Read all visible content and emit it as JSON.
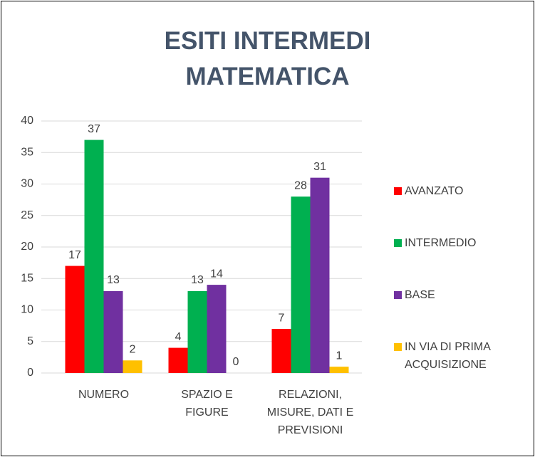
{
  "chart_data": {
    "type": "bar",
    "title": [
      "ESITI INTERMEDI",
      "MATEMATICA"
    ],
    "categories": [
      "NUMERO",
      "SPAZIO E FIGURE",
      "RELAZIONI, MISURE, DATI E PREVISIONI"
    ],
    "series": [
      {
        "name": "AVANZATO",
        "color": "#ff0000",
        "values": [
          17,
          4,
          7
        ]
      },
      {
        "name": "INTERMEDIO",
        "color": "#00b050",
        "values": [
          37,
          13,
          28
        ]
      },
      {
        "name": "BASE",
        "color": "#7030a0",
        "values": [
          13,
          14,
          31
        ]
      },
      {
        "name": "IN VIA DI PRIMA ACQUISIZIONE",
        "color": "#ffc000",
        "values": [
          2,
          0,
          1
        ]
      }
    ],
    "ylim": [
      0,
      40
    ],
    "yticks": [
      0,
      5,
      10,
      15,
      20,
      25,
      30,
      35,
      40
    ],
    "grid": true,
    "legend": "right"
  }
}
